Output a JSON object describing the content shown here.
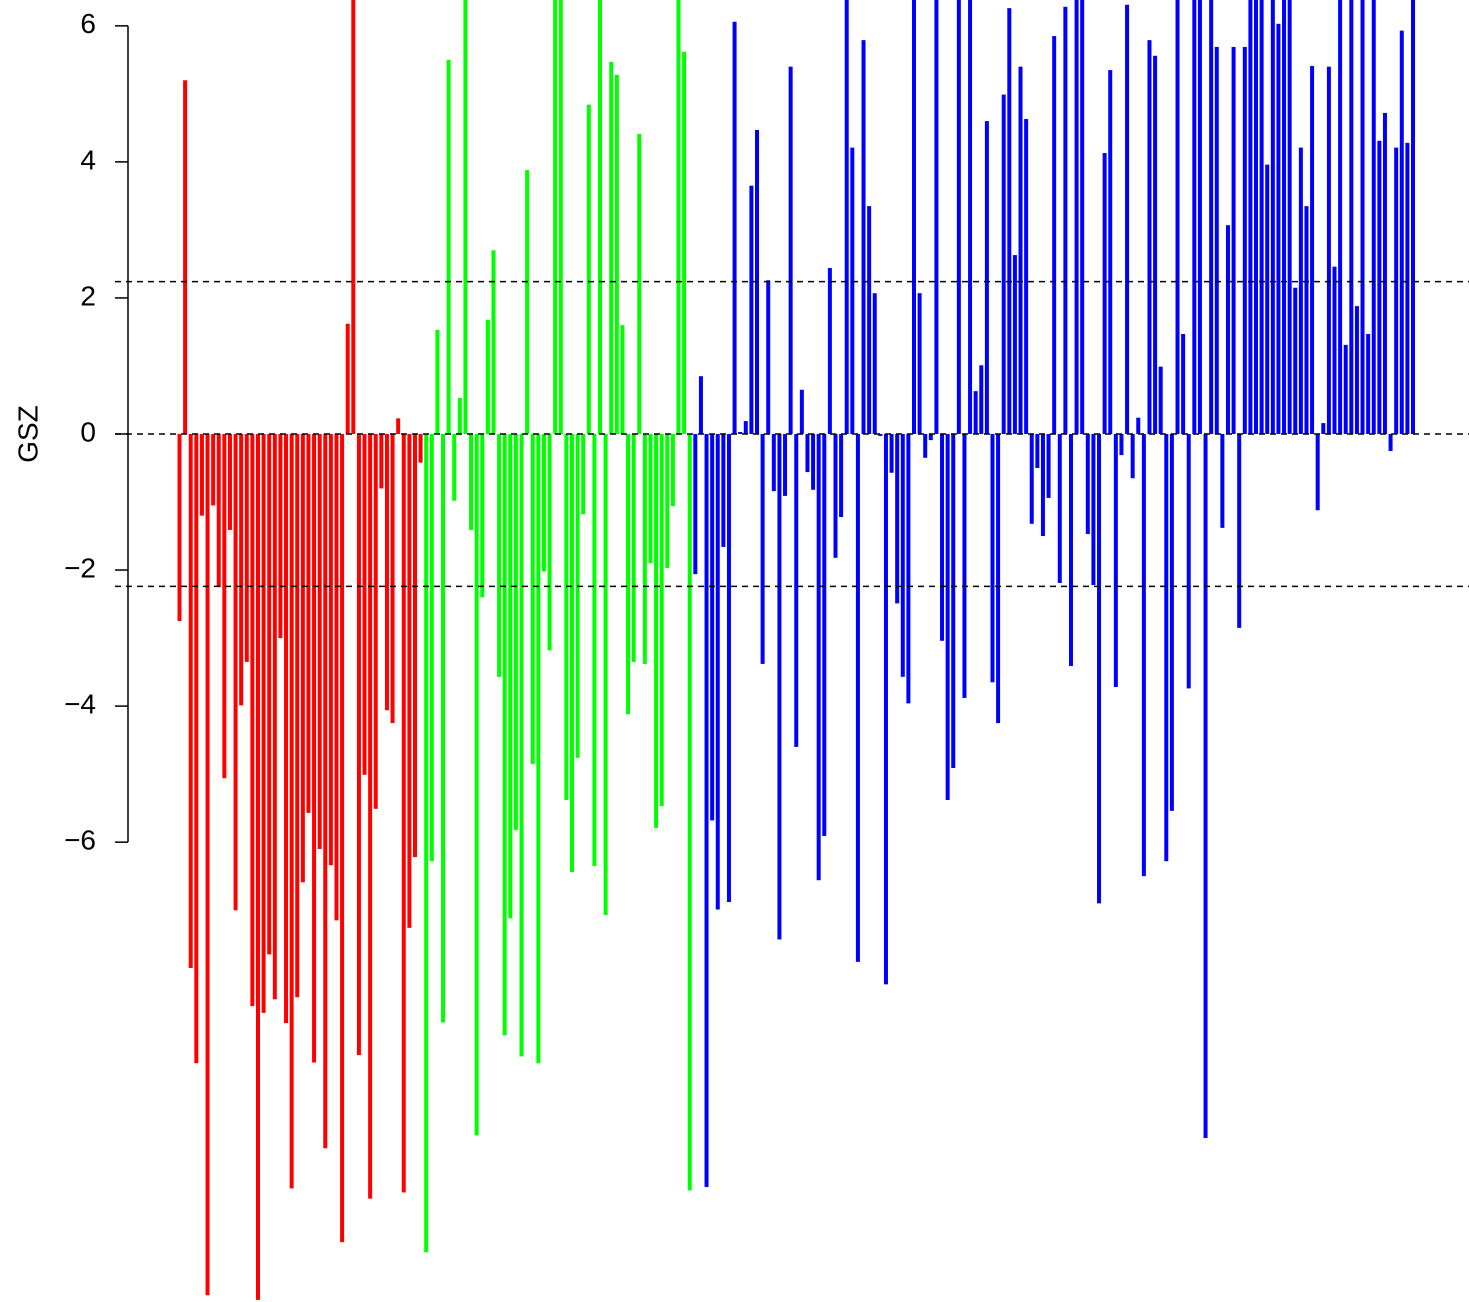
{
  "chart_data": {
    "type": "bar",
    "y_label": "GSZ",
    "ylim": [
      -12.76,
      6.38
    ],
    "yticks": [
      {
        "value": -6,
        "label": "−6"
      },
      {
        "value": -4,
        "label": "−4"
      },
      {
        "value": -2,
        "label": "−2"
      },
      0,
      2,
      4,
      6
    ],
    "hlines": [
      -2.24,
      0,
      2.24
    ],
    "series": [
      {
        "color": "#ff0000",
        "values": [
          -2.75,
          5.2,
          -7.85,
          -9.25,
          -1.2,
          -12.66,
          -1.05,
          -2.25,
          -5.06,
          -1.41,
          -7.0,
          -3.99,
          -3.35,
          -8.41,
          -12.73,
          -8.51,
          -7.65,
          -8.31,
          -3.0,
          -8.66,
          -11.09,
          -8.28,
          -6.59,
          -5.57,
          -9.24,
          -6.1,
          -10.5,
          -6.34,
          -7.15,
          -11.88,
          1.62,
          7,
          -9.13,
          -5.01,
          -11.24,
          -5.51,
          -0.8,
          -4.06,
          -4.25,
          0.23,
          -11.15,
          -7.26,
          -6.22,
          -0.42
        ]
      },
      {
        "color": "#00ff00",
        "values": [
          -12.03,
          -6.28,
          1.53,
          -8.65,
          5.5,
          -0.98,
          0.53,
          7,
          -1.41,
          -10.31,
          -2.4,
          1.68,
          2.7,
          -3.57,
          -8.84,
          -7.12,
          -5.82,
          -9.15,
          3.88,
          -4.85,
          -9.25,
          -2.02,
          -3.18,
          7,
          7,
          -5.38,
          -6.44,
          -4.76,
          -1.18,
          4.84,
          -6.35,
          7,
          -7.07,
          5.47,
          5.28,
          1.6,
          -4.12,
          -3.35,
          4.41,
          -3.38,
          -1.9,
          -5.79,
          -5.47,
          -1.97,
          -1.06,
          7,
          5.62,
          -11.12
        ]
      },
      {
        "color": "#0000ff",
        "values": [
          -2.06,
          0.85,
          -11.07,
          -5.68,
          -6.99,
          -1.66,
          -6.88,
          6.06,
          0.03,
          0.19,
          3.65,
          4.47,
          -3.38,
          2.26,
          -0.84,
          -7.43,
          -0.91,
          5.4,
          -4.6,
          0.65,
          -0.56,
          -0.82,
          -6.56,
          -5.91,
          2.44,
          -1.82,
          -1.22,
          7,
          4.21,
          -7.76,
          5.79,
          3.35,
          2.07,
          -0.03,
          -8.09,
          -0.57,
          -2.49,
          -3.57,
          -3.96,
          7,
          2.07,
          -0.35,
          -0.09,
          7,
          -3.04,
          -5.38,
          -4.91,
          7,
          -3.88,
          7,
          0.63,
          1.01,
          4.6,
          -3.65,
          -4.25,
          4.99,
          6.26,
          2.63,
          5.4,
          4.63,
          -1.32,
          -0.5,
          -1.5,
          -0.94,
          5.85,
          -2.19,
          6.28,
          -3.41,
          7,
          7,
          -1.47,
          -2.22,
          -6.9,
          4.13,
          5.35,
          -3.72,
          -0.31,
          6.31,
          -0.65,
          0.24,
          -6.5,
          5.79,
          5.56,
          0.99,
          -6.28,
          -5.54,
          7,
          1.47,
          -3.74,
          7,
          7,
          -10.35,
          7,
          5.69,
          -1.38,
          3.07,
          5.69,
          -2.85,
          5.69,
          7,
          7,
          7,
          3.96,
          7,
          6.03,
          7,
          7,
          2.15,
          4.21,
          3.35,
          5.41,
          -1.12,
          0.16,
          5.4,
          2.46,
          7,
          1.31,
          7,
          1.88,
          7,
          1.47,
          7,
          4.31,
          4.72,
          -0.25,
          4.21,
          5.93,
          4.28,
          7
        ]
      }
    ]
  }
}
